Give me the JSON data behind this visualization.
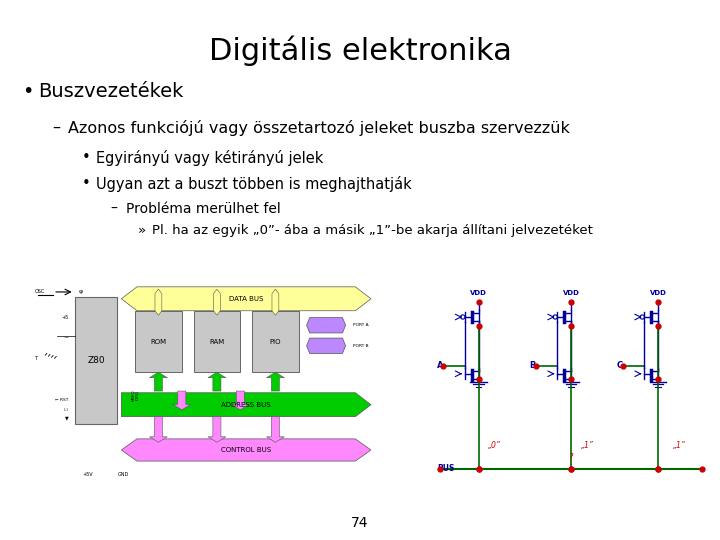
{
  "title": "Digitális elektronika",
  "title_fontsize": 22,
  "title_color": "#000000",
  "bg_color": "#ffffff",
  "bullet1": "Buszvezetékek",
  "bullet1_fontsize": 14,
  "dash1": "Azonos funkciójú vagy összetartozó jeleket buszba szervezzük",
  "dash1_fontsize": 11.5,
  "sub1": "Egyirányú vagy kétirányú jelek",
  "sub2": "Ugyan azt a buszt többen is meghajthatják",
  "sub_fontsize": 10.5,
  "dash2": "Probléma merülhet fel",
  "dash2_fontsize": 10,
  "detail1": "Pl. ha az egyik „0”- ába a másik „1”-be akarja állítani jelvezetéket",
  "detail_fontsize": 9.5,
  "page_num": "74",
  "text_color": "#000000"
}
